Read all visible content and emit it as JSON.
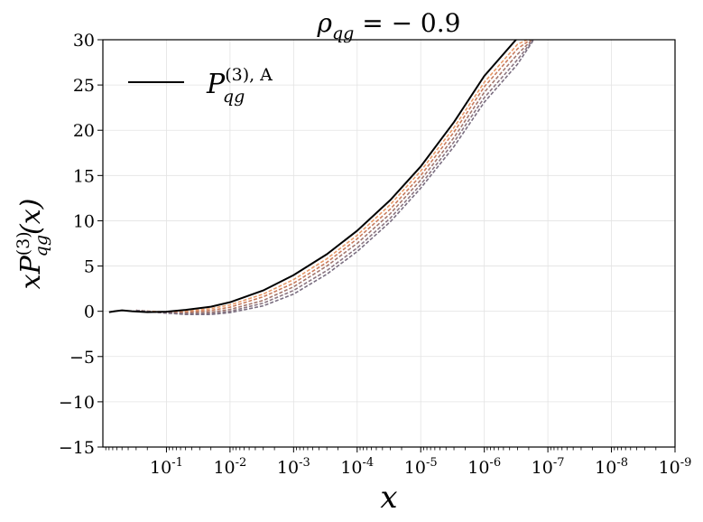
{
  "chart_data": {
    "type": "line",
    "title": "ρ_qg = −0.9",
    "title_parts": {
      "main": "ρ",
      "sub": "qg",
      "rest": " = − 0.9"
    },
    "xlabel": "x",
    "ylabel": "xP_qg^(3)(x)",
    "ylabel_parts": {
      "pre": "xP",
      "sup": "(3)",
      "sub": "qg",
      "post": "(x)"
    },
    "x_scale": "log-reversed",
    "xlim": [
      1,
      1e-09
    ],
    "ylim": [
      -15,
      30
    ],
    "x_ticks": [
      {
        "value": 0.1,
        "label": "10",
        "exp": "-1"
      },
      {
        "value": 0.01,
        "label": "10",
        "exp": "-2"
      },
      {
        "value": 0.001,
        "label": "10",
        "exp": "-3"
      },
      {
        "value": 0.0001,
        "label": "10",
        "exp": "-4"
      },
      {
        "value": 1e-05,
        "label": "10",
        "exp": "-5"
      },
      {
        "value": 1e-06,
        "label": "10",
        "exp": "-6"
      },
      {
        "value": 1e-07,
        "label": "10",
        "exp": "-7"
      },
      {
        "value": 1e-08,
        "label": "10",
        "exp": "-8"
      },
      {
        "value": 1e-09,
        "label": "10",
        "exp": "-9"
      }
    ],
    "y_ticks": [
      {
        "value": -15,
        "label": "−15"
      },
      {
        "value": -10,
        "label": "−10"
      },
      {
        "value": -5,
        "label": "−5"
      },
      {
        "value": 0,
        "label": "0"
      },
      {
        "value": 5,
        "label": "5"
      },
      {
        "value": 10,
        "label": "10"
      },
      {
        "value": 15,
        "label": "15"
      },
      {
        "value": 20,
        "label": "20"
      },
      {
        "value": 25,
        "label": "25"
      },
      {
        "value": 30,
        "label": "30"
      }
    ],
    "grid": true,
    "legend": {
      "placement": "top-left",
      "entries": [
        {
          "label": "P_qg^(3),A",
          "pre": "P",
          "sup": "(3), A",
          "sub": "qg",
          "color": "#000000"
        }
      ]
    },
    "series": [
      {
        "name": "P_qg^(3),A",
        "color": "#000000",
        "style": "solid",
        "x": [
          0.8,
          0.65,
          0.5,
          0.35,
          0.2,
          0.1,
          0.05,
          0.02,
          0.01,
          0.003,
          0.001,
          0.0003,
          0.0001,
          3e-05,
          1e-05,
          3e-06,
          1e-06,
          3e-07,
          1.5e-07
        ],
        "y": [
          -0.1,
          0.0,
          0.1,
          0.0,
          -0.1,
          -0.05,
          0.15,
          0.5,
          1.0,
          2.3,
          4.0,
          6.3,
          8.9,
          12.3,
          16.0,
          20.9,
          26.0,
          30.2,
          30.5
        ]
      }
    ],
    "variant_bands": [
      {
        "color": "#e89b6a",
        "style": "dashed",
        "x": [
          0.3,
          0.1,
          0.05,
          0.02,
          0.01,
          0.003,
          0.001,
          0.0003,
          0.0001,
          3e-05,
          1e-05,
          3e-06,
          1e-06,
          3e-07,
          1.5e-07
        ],
        "y": [
          0.1,
          -0.1,
          0.0,
          0.3,
          0.7,
          1.9,
          3.5,
          5.8,
          8.4,
          11.8,
          15.5,
          20.3,
          25.3,
          29.5,
          30.5
        ]
      },
      {
        "color": "#c97c5d",
        "style": "dashed",
        "x": [
          0.3,
          0.1,
          0.05,
          0.02,
          0.01,
          0.003,
          0.001,
          0.0003,
          0.0001,
          3e-05,
          1e-05,
          3e-06,
          1e-06,
          3e-07,
          1.5e-07
        ],
        "y": [
          0.1,
          -0.15,
          -0.1,
          0.1,
          0.45,
          1.6,
          3.1,
          5.4,
          8.0,
          11.3,
          15.0,
          19.8,
          24.8,
          29.0,
          30.5
        ]
      },
      {
        "color": "#a3776e",
        "style": "dashed",
        "x": [
          0.3,
          0.1,
          0.05,
          0.02,
          0.01,
          0.003,
          0.001,
          0.0003,
          0.0001,
          3e-05,
          1e-05,
          3e-06,
          1e-06,
          3e-07,
          1.5e-07
        ],
        "y": [
          0.1,
          -0.2,
          -0.2,
          -0.1,
          0.2,
          1.2,
          2.7,
          5.0,
          7.5,
          10.8,
          14.5,
          19.2,
          24.2,
          28.4,
          30.5
        ]
      },
      {
        "color": "#8b7580",
        "style": "dashed",
        "x": [
          0.3,
          0.1,
          0.05,
          0.02,
          0.01,
          0.003,
          0.001,
          0.0003,
          0.0001,
          3e-05,
          1e-05,
          3e-06,
          1e-06,
          3e-07,
          1.5e-07
        ],
        "y": [
          0.1,
          -0.2,
          -0.3,
          -0.25,
          0.0,
          0.9,
          2.3,
          4.5,
          7.0,
          10.3,
          14.0,
          18.7,
          23.6,
          27.8,
          30.5
        ]
      },
      {
        "color": "#7a6e80",
        "style": "dashed",
        "x": [
          0.3,
          0.1,
          0.05,
          0.02,
          0.01,
          0.003,
          0.001,
          0.0003,
          0.0001,
          3e-05,
          1e-05,
          3e-06,
          1e-06,
          3e-07,
          1.5e-07
        ],
        "y": [
          0.1,
          -0.2,
          -0.35,
          -0.35,
          -0.15,
          0.6,
          1.9,
          4.1,
          6.6,
          9.9,
          13.6,
          18.2,
          23.1,
          27.3,
          30.5
        ]
      }
    ]
  }
}
